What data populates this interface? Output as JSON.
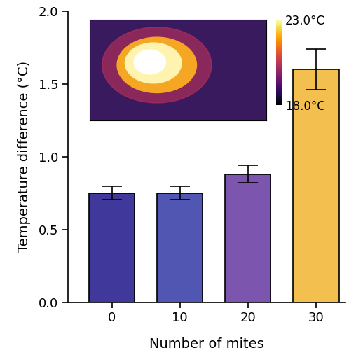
{
  "chart_data": {
    "type": "bar",
    "x_label": "Number of mites",
    "y_label": "Temperature difference (°C)",
    "categories": [
      "0",
      "10",
      "20",
      "30"
    ],
    "values": [
      0.75,
      0.75,
      0.88,
      1.6
    ],
    "errors": [
      0.045,
      0.045,
      0.06,
      0.14
    ],
    "colors": [
      "#40389a",
      "#5056b2",
      "#7c55ae",
      "#f3bf4f"
    ],
    "ylim": [
      0.0,
      2.0
    ],
    "yticks": [
      0.0,
      0.5,
      1.0,
      1.5,
      2.0
    ],
    "colorbar": {
      "range": [
        18.0,
        23.0
      ],
      "ticks": [
        {
          "value": 23.0,
          "label": "23.0°C"
        },
        {
          "value": 18.0,
          "label": "18.0°C"
        }
      ]
    }
  }
}
